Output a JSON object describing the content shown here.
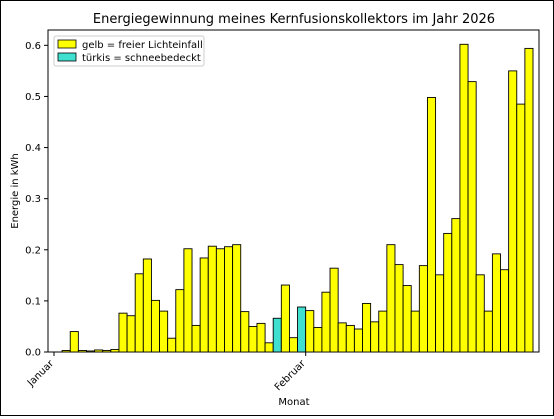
{
  "chart_data": {
    "type": "bar",
    "title": "Energiegewinnung meines Kernfusionskollektors im Jahr 2026",
    "xlabel": "Monat",
    "ylabel": "Energie in kWh",
    "ylim": [
      0,
      0.63
    ],
    "yticks": [
      "0.0",
      "0.1",
      "0.2",
      "0.3",
      "0.4",
      "0.5",
      "0.6"
    ],
    "xtick_labels": [
      {
        "label": "Januar",
        "at_day": 0
      },
      {
        "label": "Februar",
        "at_day": 31
      }
    ],
    "grid": false,
    "legend_position": "top-left",
    "colors": {
      "free": "#ffff00",
      "snow": "#40e0d0",
      "edge": "#000000"
    },
    "legend": [
      {
        "label": "gelb = freier Lichteinfall",
        "color": "#ffff00"
      },
      {
        "label": "türkis = schneebedeckt",
        "color": "#40e0d0"
      }
    ],
    "series_values": [
      0.0,
      0.003,
      0.04,
      0.003,
      0.002,
      0.004,
      0.003,
      0.005,
      0.076,
      0.071,
      0.153,
      0.182,
      0.101,
      0.08,
      0.027,
      0.122,
      0.202,
      0.052,
      0.184,
      0.207,
      0.202,
      0.206,
      0.21,
      0.079,
      0.05,
      0.056,
      0.018,
      0.066,
      0.131,
      0.028,
      0.088,
      0.081,
      0.048,
      0.117,
      0.164,
      0.057,
      0.052,
      0.045,
      0.095,
      0.059,
      0.08,
      0.21,
      0.171,
      0.13,
      0.08,
      0.169,
      0.498,
      0.151,
      0.232,
      0.261,
      0.602,
      0.529,
      0.151,
      0.08,
      0.192,
      0.161,
      0.55,
      0.485,
      0.594
    ],
    "snow_covered_days": [
      27,
      30
    ]
  }
}
